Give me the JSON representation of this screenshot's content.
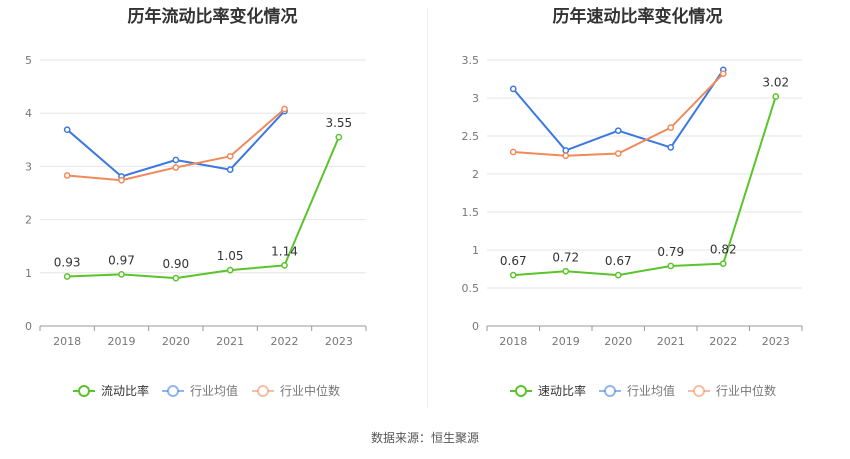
{
  "source_label": "数据来源：恒生聚源",
  "chart_data": [
    {
      "type": "line",
      "title": "历年流动比率变化情况",
      "categories": [
        "2018",
        "2019",
        "2020",
        "2021",
        "2022",
        "2023"
      ],
      "ylim": [
        0,
        5
      ],
      "yticks": [
        "0",
        "1",
        "2",
        "3",
        "4",
        "5"
      ],
      "grid": true,
      "legend_position": "bottom",
      "series": [
        {
          "name": "流动比率",
          "color": "#5ac42a",
          "values": [
            0.93,
            0.97,
            0.9,
            1.05,
            1.14,
            3.55
          ],
          "labels": [
            "0.93",
            "0.97",
            "0.90",
            "1.05",
            "1.14",
            "3.55"
          ]
        },
        {
          "name": "行业均值",
          "color": "#3b78e0",
          "values": [
            3.69,
            2.81,
            3.12,
            2.94,
            4.04,
            null
          ]
        },
        {
          "name": "行业中位数",
          "color": "#ef8a5b",
          "values": [
            2.83,
            2.74,
            2.98,
            3.19,
            4.08,
            null
          ]
        }
      ]
    },
    {
      "type": "line",
      "title": "历年速动比率变化情况",
      "categories": [
        "2018",
        "2019",
        "2020",
        "2021",
        "2022",
        "2023"
      ],
      "ylim": [
        0,
        3.5
      ],
      "yticks": [
        "0",
        "0.5",
        "1",
        "1.5",
        "2",
        "2.5",
        "3",
        "3.5"
      ],
      "grid": true,
      "legend_position": "bottom",
      "series": [
        {
          "name": "速动比率",
          "color": "#5ac42a",
          "values": [
            0.67,
            0.72,
            0.67,
            0.79,
            0.82,
            3.02
          ],
          "labels": [
            "0.67",
            "0.72",
            "0.67",
            "0.79",
            "0.82",
            "3.02"
          ]
        },
        {
          "name": "行业均值",
          "color": "#3b78e0",
          "values": [
            3.12,
            2.31,
            2.57,
            2.35,
            3.37,
            null
          ]
        },
        {
          "name": "行业中位数",
          "color": "#ef8a5b",
          "values": [
            2.29,
            2.24,
            2.27,
            2.61,
            3.32,
            null
          ]
        }
      ]
    }
  ]
}
